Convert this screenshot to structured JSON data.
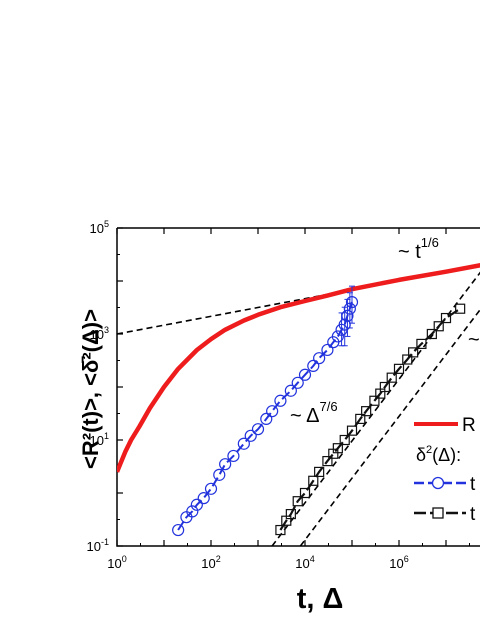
{
  "chart_data": {
    "type": "scatter",
    "xscale": "log",
    "yscale": "log",
    "xlim": [
      1,
      100000000
    ],
    "ylim": [
      0.1,
      100000
    ],
    "xlabel": "t, Δ",
    "ylabel": "<R²(t)>, <δ̄²(Δ)>",
    "x_ticks": [
      {
        "base": "10",
        "exp": "0",
        "value": 1
      },
      {
        "base": "10",
        "exp": "2",
        "value": 100
      },
      {
        "base": "10",
        "exp": "4",
        "value": 10000
      },
      {
        "base": "10",
        "exp": "6",
        "value": 1000000
      }
    ],
    "y_ticks": [
      {
        "base": "10",
        "exp": "-1",
        "value": 0.1
      },
      {
        "base": "10",
        "exp": "1",
        "value": 10
      },
      {
        "base": "10",
        "exp": "3",
        "value": 1000
      },
      {
        "base": "10",
        "exp": "5",
        "value": 100000
      }
    ],
    "annotations": [
      {
        "id": "t16",
        "prefix": "~ t",
        "exp": "1/6"
      },
      {
        "id": "delta76",
        "prefix": "~ Δ",
        "exp": "7/6"
      },
      {
        "id": "tilde_right",
        "prefix": "~",
        "exp": ""
      }
    ],
    "legend": {
      "placement": "bottom-right",
      "msd_label": "R",
      "tamsd_header_base": "δ",
      "tamsd_header_exp": "2",
      "tamsd_header_suffix": "(Δ):",
      "blue_label": "t",
      "black_label": "t"
    },
    "series": [
      {
        "name": "R",
        "style": "line",
        "color": "#ee1c1c",
        "points": [
          [
            1,
            2.5
          ],
          [
            1.5,
            6
          ],
          [
            2,
            10
          ],
          [
            3,
            18
          ],
          [
            5,
            40
          ],
          [
            10,
            100
          ],
          [
            20,
            220
          ],
          [
            50,
            500
          ],
          [
            100,
            800
          ],
          [
            200,
            1200
          ],
          [
            500,
            1800
          ],
          [
            1000,
            2300
          ],
          [
            3000,
            3200
          ],
          [
            10000,
            4200
          ],
          [
            30000,
            5300
          ],
          [
            100000,
            7000
          ],
          [
            1000000,
            10500
          ],
          [
            10000000,
            15000
          ],
          [
            100000000,
            22000
          ]
        ]
      },
      {
        "name": "δ²(Δ) blue",
        "style": "markers-circle",
        "color": "#2233dd",
        "points": [
          [
            20,
            0.2
          ],
          [
            30,
            0.35
          ],
          [
            40,
            0.45
          ],
          [
            50,
            0.6
          ],
          [
            70,
            0.8
          ],
          [
            100,
            1.2
          ],
          [
            150,
            2.2
          ],
          [
            200,
            3.5
          ],
          [
            300,
            5
          ],
          [
            500,
            8.5
          ],
          [
            700,
            12
          ],
          [
            1000,
            16
          ],
          [
            1500,
            25
          ],
          [
            2000,
            35
          ],
          [
            3000,
            55
          ],
          [
            5000,
            85
          ],
          [
            7000,
            120
          ],
          [
            10000,
            170
          ],
          [
            15000,
            250
          ],
          [
            20000,
            350
          ],
          [
            30000,
            500
          ],
          [
            40000,
            700
          ],
          [
            50000,
            900
          ],
          [
            60000,
            1200
          ],
          [
            70000,
            1500
          ],
          [
            80000,
            2200
          ],
          [
            90000,
            3000
          ],
          [
            100000,
            4000
          ]
        ],
        "errors": [
          [
            60000,
            600,
            2500
          ],
          [
            70000,
            600,
            3200
          ],
          [
            80000,
            900,
            4500
          ],
          [
            90000,
            1300,
            6000
          ],
          [
            100000,
            1600,
            8000
          ]
        ]
      },
      {
        "name": "δ²(Δ) black",
        "style": "markers-square",
        "color": "#111111",
        "points": [
          [
            3000,
            0.2
          ],
          [
            4000,
            0.3
          ],
          [
            5000,
            0.4
          ],
          [
            7000,
            0.7
          ],
          [
            10000,
            1
          ],
          [
            15000,
            1.7
          ],
          [
            20000,
            2.5
          ],
          [
            30000,
            4
          ],
          [
            40000,
            5.5
          ],
          [
            50000,
            7
          ],
          [
            70000,
            10
          ],
          [
            100000,
            15
          ],
          [
            150000,
            25
          ],
          [
            200000,
            35
          ],
          [
            300000,
            55
          ],
          [
            400000,
            75
          ],
          [
            500000,
            100
          ],
          [
            700000,
            150
          ],
          [
            1000000,
            220
          ],
          [
            1500000,
            330
          ],
          [
            2000000,
            450
          ],
          [
            3000000,
            650
          ],
          [
            5000000,
            1000
          ],
          [
            7000000,
            1400
          ],
          [
            10000000,
            2000
          ],
          [
            20000000,
            3000
          ]
        ]
      },
      {
        "name": "t^1/6 guide",
        "style": "dashed",
        "color": "#000000",
        "points": [
          [
            1,
            1000
          ],
          [
            100000000,
            21544
          ]
        ]
      },
      {
        "name": "Δ^7/6 guide upper",
        "style": "dashed",
        "color": "#000000",
        "points": [
          [
            2000,
            0.1
          ],
          [
            100000000,
            30000
          ]
        ]
      },
      {
        "name": "Δ^7/6 guide lower",
        "style": "dashed",
        "color": "#000000",
        "points": [
          [
            8000,
            0.1
          ],
          [
            100000000,
            6000
          ]
        ]
      }
    ]
  }
}
